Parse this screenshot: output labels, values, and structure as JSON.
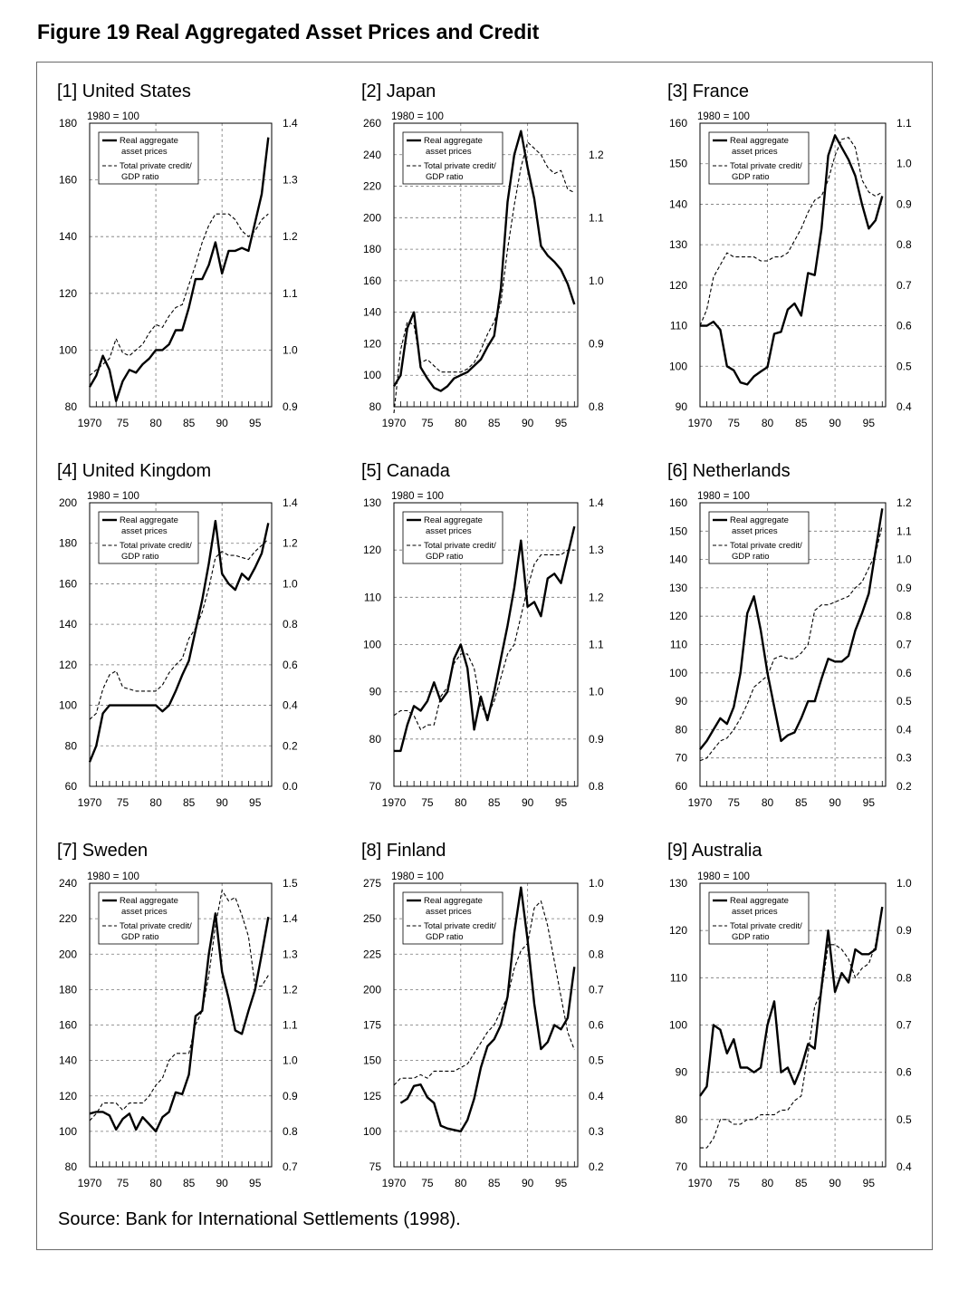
{
  "figure": {
    "title": "Figure 19  Real Aggregated Asset Prices and Credit",
    "source": "Source: Bank for International Settlements (1998)."
  },
  "chart_data": [
    {
      "type": "line",
      "title": "[1] United States",
      "base_label": "1980 = 100",
      "legend": [
        "Real aggregate asset prices",
        "Total private credit/ GDP ratio"
      ],
      "x_ticks": [
        "1970",
        "75",
        "80",
        "85",
        "90",
        "95"
      ],
      "left_ticks": [
        "80",
        "100",
        "120",
        "140",
        "160",
        "180"
      ],
      "left_range": [
        80,
        180
      ],
      "right_ticks": [
        "0.9",
        "1.0",
        "1.1",
        "1.2",
        "1.3",
        "1.4"
      ],
      "right_range": [
        0.9,
        1.4
      ],
      "series": [
        {
          "name": "Real aggregate asset prices",
          "axis": "left",
          "style": "solid",
          "x_start": 1970,
          "values": [
            87,
            91,
            98,
            93,
            82,
            89,
            93,
            92,
            95,
            97,
            100,
            100,
            102,
            107,
            107,
            115,
            125,
            125,
            130,
            138,
            127,
            135,
            135,
            136,
            135,
            145,
            155,
            175
          ]
        },
        {
          "name": "Total private credit/GDP ratio",
          "axis": "right",
          "style": "dashed",
          "x_start": 1970,
          "values": [
            0.955,
            0.965,
            0.975,
            0.985,
            1.02,
            0.995,
            0.99,
            1.0,
            1.01,
            1.03,
            1.045,
            1.04,
            1.06,
            1.075,
            1.08,
            1.115,
            1.15,
            1.19,
            1.22,
            1.24,
            1.24,
            1.24,
            1.23,
            1.21,
            1.2,
            1.21,
            1.23,
            1.24
          ]
        }
      ]
    },
    {
      "type": "line",
      "title": "[2] Japan",
      "base_label": "1980 = 100",
      "legend": [
        "Real aggregate asset prices",
        "Total private credit/ GDP ratio"
      ],
      "x_ticks": [
        "1970",
        "75",
        "80",
        "85",
        "90",
        "95"
      ],
      "left_ticks": [
        "80",
        "100",
        "120",
        "140",
        "160",
        "180",
        "200",
        "220",
        "240",
        "260"
      ],
      "left_range": [
        80,
        260
      ],
      "right_ticks": [
        "0.8",
        "0.9",
        "1.0",
        "1.1",
        "1.2"
      ],
      "right_range": [
        0.8,
        1.25
      ],
      "series": [
        {
          "name": "Real aggregate asset prices",
          "axis": "left",
          "style": "solid",
          "x_start": 1970,
          "values": [
            93,
            100,
            130,
            140,
            105,
            98,
            92,
            90,
            93,
            98,
            100,
            102,
            106,
            110,
            118,
            125,
            155,
            210,
            240,
            255,
            232,
            212,
            182,
            176,
            172,
            167,
            158,
            145
          ]
        },
        {
          "name": "Total private credit/GDP ratio",
          "axis": "right",
          "style": "dashed",
          "x_start": 1970,
          "values": [
            0.79,
            0.89,
            0.935,
            0.93,
            0.87,
            0.875,
            0.865,
            0.855,
            0.855,
            0.855,
            0.855,
            0.86,
            0.87,
            0.89,
            0.915,
            0.935,
            0.965,
            1.05,
            1.12,
            1.18,
            1.22,
            1.21,
            1.2,
            1.18,
            1.17,
            1.175,
            1.145,
            1.14
          ]
        }
      ]
    },
    {
      "type": "line",
      "title": "[3] France",
      "base_label": "1980 = 100",
      "legend": [
        "Real aggregate asset prices",
        "Total private credit/ GDP ratio"
      ],
      "x_ticks": [
        "1970",
        "75",
        "80",
        "85",
        "90",
        "95"
      ],
      "left_ticks": [
        "90",
        "100",
        "110",
        "120",
        "130",
        "140",
        "150",
        "160"
      ],
      "left_range": [
        90,
        160
      ],
      "right_ticks": [
        "0.4",
        "0.5",
        "0.6",
        "0.7",
        "0.8",
        "0.9",
        "1.0",
        "1.1"
      ],
      "right_range": [
        0.4,
        1.1
      ],
      "series": [
        {
          "name": "Real aggregate asset prices",
          "axis": "left",
          "style": "solid",
          "x_start": 1970,
          "values": [
            110,
            110,
            111,
            109,
            100,
            99,
            96,
            95.5,
            97.5,
            98.7,
            99.8,
            108,
            108.5,
            114,
            115.5,
            112.5,
            123,
            122.5,
            134,
            152,
            157,
            154,
            151,
            147,
            140,
            134,
            136,
            142
          ]
        },
        {
          "name": "Total private credit/GDP ratio",
          "axis": "right",
          "style": "dashed",
          "x_start": 1970,
          "values": [
            0.6,
            0.64,
            0.72,
            0.75,
            0.78,
            0.77,
            0.77,
            0.77,
            0.77,
            0.76,
            0.76,
            0.77,
            0.77,
            0.78,
            0.81,
            0.84,
            0.88,
            0.91,
            0.92,
            0.96,
            1.02,
            1.06,
            1.065,
            1.04,
            0.96,
            0.93,
            0.92,
            0.93
          ]
        }
      ]
    },
    {
      "type": "line",
      "title": "[4] United Kingdom",
      "base_label": "1980 = 100",
      "legend": [
        "Real aggregate asset prices",
        "Total private credit/ GDP ratio"
      ],
      "x_ticks": [
        "1970",
        "75",
        "80",
        "85",
        "90",
        "95"
      ],
      "left_ticks": [
        "60",
        "80",
        "100",
        "120",
        "140",
        "160",
        "180",
        "200"
      ],
      "left_range": [
        60,
        200
      ],
      "right_ticks": [
        "0.0",
        "0.2",
        "0.4",
        "0.6",
        "0.8",
        "1.0",
        "1.2",
        "1.4"
      ],
      "right_range": [
        0.0,
        1.4
      ],
      "series": [
        {
          "name": "Real aggregate asset prices",
          "axis": "left",
          "style": "solid",
          "x_start": 1970,
          "values": [
            72,
            80,
            96,
            100,
            100,
            100,
            100,
            100,
            100,
            100,
            100,
            97,
            100,
            107,
            115,
            122,
            137,
            152,
            170,
            191,
            165,
            160,
            157,
            165,
            162,
            168,
            175,
            190
          ]
        },
        {
          "name": "Total private credit/GDP ratio",
          "axis": "right",
          "style": "dashed",
          "x_start": 1970,
          "values": [
            0.33,
            0.36,
            0.48,
            0.55,
            0.57,
            0.49,
            0.48,
            0.47,
            0.47,
            0.47,
            0.47,
            0.5,
            0.56,
            0.6,
            0.63,
            0.73,
            0.78,
            0.86,
            0.98,
            1.13,
            1.16,
            1.14,
            1.14,
            1.13,
            1.12,
            1.16,
            1.19,
            1.22
          ]
        }
      ]
    },
    {
      "type": "line",
      "title": "[5] Canada",
      "base_label": "1980 = 100",
      "legend": [
        "Real aggregate asset prices",
        "Total private credit/ GDP ratio"
      ],
      "x_ticks": [
        "1970",
        "75",
        "80",
        "85",
        "90",
        "95"
      ],
      "left_ticks": [
        "70",
        "80",
        "90",
        "100",
        "110",
        "120",
        "130"
      ],
      "left_range": [
        70,
        130
      ],
      "right_ticks": [
        "0.8",
        "0.9",
        "1.0",
        "1.1",
        "1.2",
        "1.3",
        "1.4"
      ],
      "right_range": [
        0.8,
        1.4
      ],
      "series": [
        {
          "name": "Real aggregate asset prices",
          "axis": "left",
          "style": "solid",
          "x_start": 1970,
          "values": [
            77.5,
            77.5,
            83,
            87,
            86,
            88,
            92,
            88,
            90,
            97,
            100,
            95,
            82,
            89,
            84,
            90,
            97,
            104,
            112,
            122,
            108,
            109,
            106,
            114,
            115,
            113,
            119,
            125
          ]
        },
        {
          "name": "Total private credit/GDP ratio",
          "axis": "right",
          "style": "dashed",
          "x_start": 1970,
          "values": [
            0.95,
            0.96,
            0.96,
            0.95,
            0.92,
            0.93,
            0.93,
            0.99,
            1.01,
            1.06,
            1.08,
            1.08,
            1.05,
            0.97,
            0.95,
            0.98,
            1.03,
            1.08,
            1.1,
            1.16,
            1.22,
            1.27,
            1.29,
            1.29,
            1.29,
            1.29,
            1.3,
            1.3
          ]
        }
      ]
    },
    {
      "type": "line",
      "title": "[6] Netherlands",
      "base_label": "1980 = 100",
      "legend": [
        "Real aggregate asset prices",
        "Total private credit/ GDP ratio"
      ],
      "x_ticks": [
        "1970",
        "75",
        "80",
        "85",
        "90",
        "95"
      ],
      "left_ticks": [
        "60",
        "70",
        "80",
        "90",
        "100",
        "110",
        "120",
        "130",
        "140",
        "150",
        "160"
      ],
      "left_range": [
        60,
        160
      ],
      "right_ticks": [
        "0.2",
        "0.3",
        "0.4",
        "0.5",
        "0.6",
        "0.7",
        "0.8",
        "0.9",
        "1.0",
        "1.1",
        "1.2"
      ],
      "right_range": [
        0.2,
        1.2
      ],
      "series": [
        {
          "name": "Real aggregate asset prices",
          "axis": "left",
          "style": "solid",
          "x_start": 1970,
          "values": [
            73,
            76,
            80,
            84,
            82,
            88,
            100,
            121,
            127,
            115,
            100,
            88,
            76,
            78,
            79,
            84,
            90,
            90,
            98,
            105,
            104,
            104,
            106,
            115,
            121,
            128,
            143,
            158
          ]
        },
        {
          "name": "Total private credit/GDP ratio",
          "axis": "right",
          "style": "dashed",
          "x_start": 1970,
          "values": [
            0.29,
            0.3,
            0.33,
            0.36,
            0.37,
            0.4,
            0.44,
            0.49,
            0.55,
            0.57,
            0.59,
            0.65,
            0.66,
            0.65,
            0.65,
            0.67,
            0.7,
            0.82,
            0.84,
            0.84,
            0.85,
            0.86,
            0.87,
            0.9,
            0.92,
            0.97,
            1.02,
            1.12
          ]
        }
      ]
    },
    {
      "type": "line",
      "title": "[7] Sweden",
      "base_label": "1980 = 100",
      "legend": [
        "Real aggregate asset prices",
        "Total private credit/ GDP ratio"
      ],
      "x_ticks": [
        "1970",
        "75",
        "80",
        "85",
        "90",
        "95"
      ],
      "left_ticks": [
        "80",
        "100",
        "120",
        "140",
        "160",
        "180",
        "200",
        "220",
        "240"
      ],
      "left_range": [
        80,
        240
      ],
      "right_ticks": [
        "0.7",
        "0.8",
        "0.9",
        "1.0",
        "1.1",
        "1.2",
        "1.3",
        "1.4",
        "1.5"
      ],
      "right_range": [
        0.7,
        1.5
      ],
      "series": [
        {
          "name": "Real aggregate asset prices",
          "axis": "left",
          "style": "solid",
          "x_start": 1970,
          "values": [
            110,
            111,
            111,
            109,
            101,
            107,
            110,
            101,
            108,
            104,
            100,
            108,
            111,
            122,
            121,
            132,
            165,
            168,
            200,
            223,
            190,
            175,
            157,
            155,
            168,
            180,
            200,
            221
          ]
        },
        {
          "name": "Total private credit/GDP ratio",
          "axis": "right",
          "style": "dashed",
          "x_start": 1970,
          "values": [
            0.83,
            0.85,
            0.88,
            0.88,
            0.88,
            0.86,
            0.88,
            0.88,
            0.88,
            0.9,
            0.93,
            0.95,
            1.0,
            1.02,
            1.02,
            1.02,
            1.1,
            1.14,
            1.24,
            1.38,
            1.48,
            1.45,
            1.46,
            1.41,
            1.35,
            1.21,
            1.21,
            1.24
          ]
        }
      ]
    },
    {
      "type": "line",
      "title": "[8] Finland",
      "base_label": "1980 = 100",
      "legend": [
        "Real aggregate asset prices",
        "Total private credit/ GDP ratio"
      ],
      "x_ticks": [
        "1970",
        "75",
        "80",
        "85",
        "90",
        "95"
      ],
      "left_ticks": [
        "75",
        "100",
        "125",
        "150",
        "175",
        "200",
        "225",
        "250",
        "275"
      ],
      "left_range": [
        75,
        275
      ],
      "right_ticks": [
        "0.2",
        "0.3",
        "0.4",
        "0.5",
        "0.6",
        "0.7",
        "0.8",
        "0.9",
        "1.0"
      ],
      "right_range": [
        0.2,
        1.0
      ],
      "series": [
        {
          "name": "Real aggregate asset prices",
          "axis": "left",
          "style": "solid",
          "x_start": 1971,
          "values": [
            120,
            123,
            132,
            133,
            124,
            120,
            104,
            102,
            101,
            100,
            108,
            123,
            145,
            160,
            165,
            175,
            195,
            240,
            272,
            235,
            190,
            158,
            163,
            175,
            172,
            180,
            216
          ]
        },
        {
          "name": "Total private credit/GDP ratio",
          "axis": "right",
          "style": "dashed",
          "x_start": 1970,
          "values": [
            0.43,
            0.45,
            0.45,
            0.45,
            0.46,
            0.45,
            0.47,
            0.47,
            0.47,
            0.47,
            0.48,
            0.49,
            0.52,
            0.55,
            0.58,
            0.6,
            0.64,
            0.68,
            0.76,
            0.81,
            0.83,
            0.93,
            0.95,
            0.88,
            0.78,
            0.68,
            0.58,
            0.53
          ]
        }
      ]
    },
    {
      "type": "line",
      "title": "[9] Australia",
      "base_label": "1980 = 100",
      "legend": [
        "Real aggregate asset prices",
        "Total private credit/ GDP ratio"
      ],
      "x_ticks": [
        "1970",
        "75",
        "80",
        "85",
        "90",
        "95"
      ],
      "left_ticks": [
        "70",
        "80",
        "90",
        "100",
        "110",
        "120",
        "130"
      ],
      "left_range": [
        70,
        130
      ],
      "right_ticks": [
        "0.4",
        "0.5",
        "0.6",
        "0.7",
        "0.8",
        "0.9",
        "1.0"
      ],
      "right_range": [
        0.4,
        1.0
      ],
      "series": [
        {
          "name": "Real aggregate asset prices",
          "axis": "left",
          "style": "solid",
          "x_start": 1970,
          "values": [
            85,
            87,
            100,
            99,
            94,
            97,
            91,
            91,
            90,
            91,
            100,
            105,
            90,
            91,
            87.5,
            91,
            96,
            95,
            108,
            120,
            107,
            111,
            109,
            116,
            115,
            115,
            116,
            125
          ]
        },
        {
          "name": "Total private credit/GDP ratio",
          "axis": "right",
          "style": "dashed",
          "x_start": 1970,
          "values": [
            0.44,
            0.44,
            0.46,
            0.5,
            0.5,
            0.49,
            0.49,
            0.5,
            0.5,
            0.51,
            0.51,
            0.51,
            0.52,
            0.52,
            0.54,
            0.55,
            0.64,
            0.74,
            0.77,
            0.87,
            0.87,
            0.86,
            0.84,
            0.8,
            0.82,
            0.83,
            0.87,
            0.95
          ]
        }
      ]
    }
  ]
}
